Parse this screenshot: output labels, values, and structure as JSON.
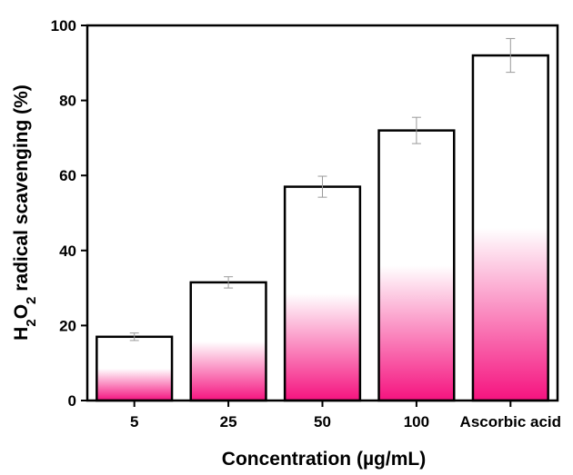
{
  "chart_data": {
    "type": "bar",
    "title": "",
    "xlabel": "Concentration (µg/mL)",
    "ylabel": {
      "prefix": "H",
      "sub1": "2",
      "mid": "O",
      "sub2": "2",
      "suffix": " radical scavenging (%)"
    },
    "categories": [
      "5",
      "25",
      "50",
      "100",
      "Ascorbic acid"
    ],
    "values": [
      17.0,
      31.5,
      57.0,
      72.0,
      92.0
    ],
    "errors": [
      1.0,
      1.5,
      2.8,
      3.5,
      4.5
    ],
    "ylim": [
      0,
      100
    ],
    "yticks": [
      0,
      20,
      40,
      60,
      80,
      100
    ],
    "grid": false,
    "legend": "none",
    "colors": {
      "bar_bottom": "#f5137f",
      "bar_top": "#ffffff",
      "error_bar": "#9a9a9a"
    }
  }
}
